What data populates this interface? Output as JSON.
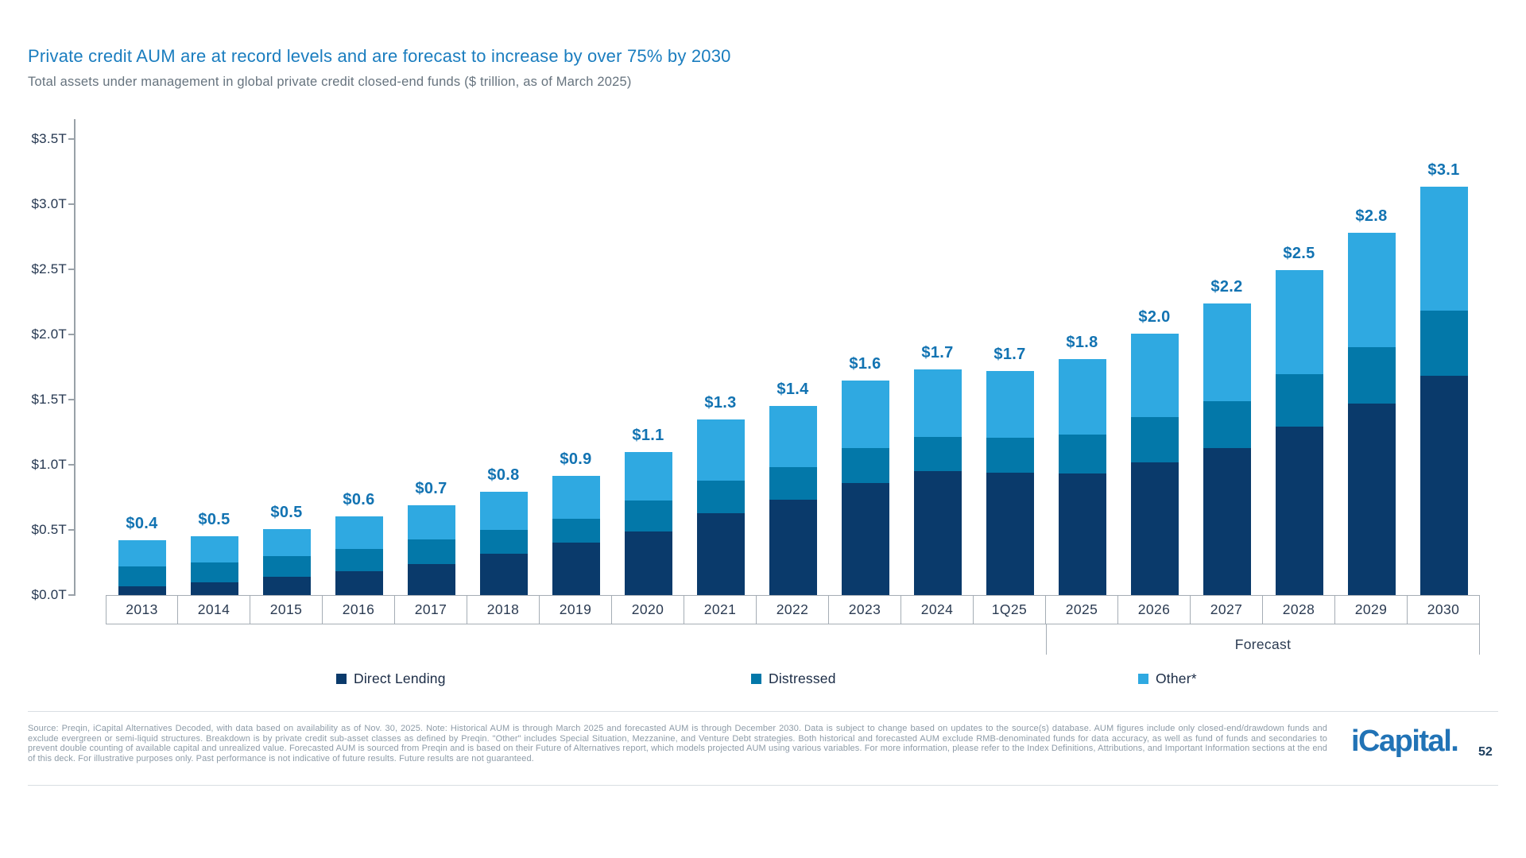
{
  "slide": {
    "title": "Private credit AUM are at record levels and are forecast to increase by over 75% by 2030",
    "subtitle": "Total assets under management in global private credit closed-end funds ($ trillion, as of March 2025)",
    "footer": "Source: Preqin, iCapital Alternatives Decoded, with data based on availability as of Nov. 30, 2025. Note: Historical AUM is through March 2025 and forecasted AUM is through December 2030. Data is subject to change based on updates to the source(s) database. AUM figures include only closed-end/drawdown funds and exclude evergreen or semi-liquid structures. Breakdown is by private credit sub-asset classes as defined by Preqin. \"Other\" includes Special Situation, Mezzanine, and Venture Debt strategies. Both historical and forecasted AUM exclude RMB-denominated funds for data accuracy, as well as fund of funds and secondaries to prevent double counting of available capital and unrealized value. Forecasted AUM is sourced from Preqin and is based on their Future of Alternatives report, which models projected AUM using various variables. For more information, please refer to the Index Definitions, Attributions, and Important Information sections at the end of this deck. For illustrative purposes only. Past performance is not indicative of future results. Future results are not guaranteed.",
    "logo_text": "iCapital.",
    "page_number": "52"
  },
  "legend": {
    "items": [
      {
        "label": "Direct Lending",
        "color": "#0A3A6B"
      },
      {
        "label": "Distressed",
        "color": "#0378A9"
      },
      {
        "label": "Other*",
        "color": "#2FA9E1"
      }
    ]
  },
  "chart_data": {
    "type": "bar",
    "stacked": true,
    "title": "Total assets under management in global private credit closed-end funds ($ trillion, as of March 2025)",
    "xlabel": "",
    "ylabel": "$ trillion",
    "ylim": [
      0,
      3.5
    ],
    "grid": false,
    "legend_position": "bottom",
    "categories": [
      "2013",
      "2014",
      "2015",
      "2016",
      "2017",
      "2018",
      "2019",
      "2020",
      "2021",
      "2022",
      "2023",
      "2024",
      "1Q25",
      "2025",
      "2026",
      "2027",
      "2028",
      "2029",
      "2030"
    ],
    "series": [
      {
        "name": "Direct Lending",
        "color": "#0A3A6B",
        "values": [
          0.07,
          0.1,
          0.14,
          0.18,
          0.24,
          0.32,
          0.4,
          0.49,
          0.63,
          0.73,
          0.86,
          0.95,
          0.94,
          0.93,
          1.02,
          1.13,
          1.29,
          1.47,
          1.68
        ]
      },
      {
        "name": "Distressed",
        "color": "#0378A9",
        "values": [
          0.15,
          0.15,
          0.16,
          0.17,
          0.19,
          0.18,
          0.18,
          0.24,
          0.25,
          0.25,
          0.27,
          0.26,
          0.27,
          0.3,
          0.35,
          0.36,
          0.4,
          0.43,
          0.5
        ]
      },
      {
        "name": "Other*",
        "color": "#2FA9E1",
        "values": [
          0.2,
          0.2,
          0.21,
          0.25,
          0.26,
          0.29,
          0.33,
          0.37,
          0.47,
          0.47,
          0.52,
          0.52,
          0.51,
          0.58,
          0.64,
          0.75,
          0.8,
          0.88,
          0.95
        ]
      }
    ],
    "totals_labels": [
      "$0.4",
      "$0.5",
      "$0.5",
      "$0.6",
      "$0.7",
      "$0.8",
      "$0.9",
      "$1.1",
      "$1.3",
      "$1.4",
      "$1.6",
      "$1.7",
      "$1.7",
      "$1.8",
      "$2.0",
      "$2.2",
      "$2.5",
      "$2.8",
      "$3.1"
    ],
    "totals": [
      0.4,
      0.5,
      0.5,
      0.6,
      0.7,
      0.8,
      0.9,
      1.1,
      1.3,
      1.4,
      1.6,
      1.7,
      1.7,
      1.8,
      2.0,
      2.2,
      2.5,
      2.8,
      3.1
    ],
    "y_ticks": [
      {
        "value": 0.0,
        "label": "$0.0T"
      },
      {
        "value": 0.5,
        "label": "$0.5T"
      },
      {
        "value": 1.0,
        "label": "$1.0T"
      },
      {
        "value": 1.5,
        "label": "$1.5T"
      },
      {
        "value": 2.0,
        "label": "$2.0T"
      },
      {
        "value": 2.5,
        "label": "$2.5T"
      },
      {
        "value": 3.0,
        "label": "$3.0T"
      },
      {
        "value": 3.5,
        "label": "$3.5T"
      }
    ],
    "forecast_label": "Forecast",
    "forecast_categories": [
      "2025",
      "2026",
      "2027",
      "2028",
      "2029",
      "2030"
    ]
  }
}
